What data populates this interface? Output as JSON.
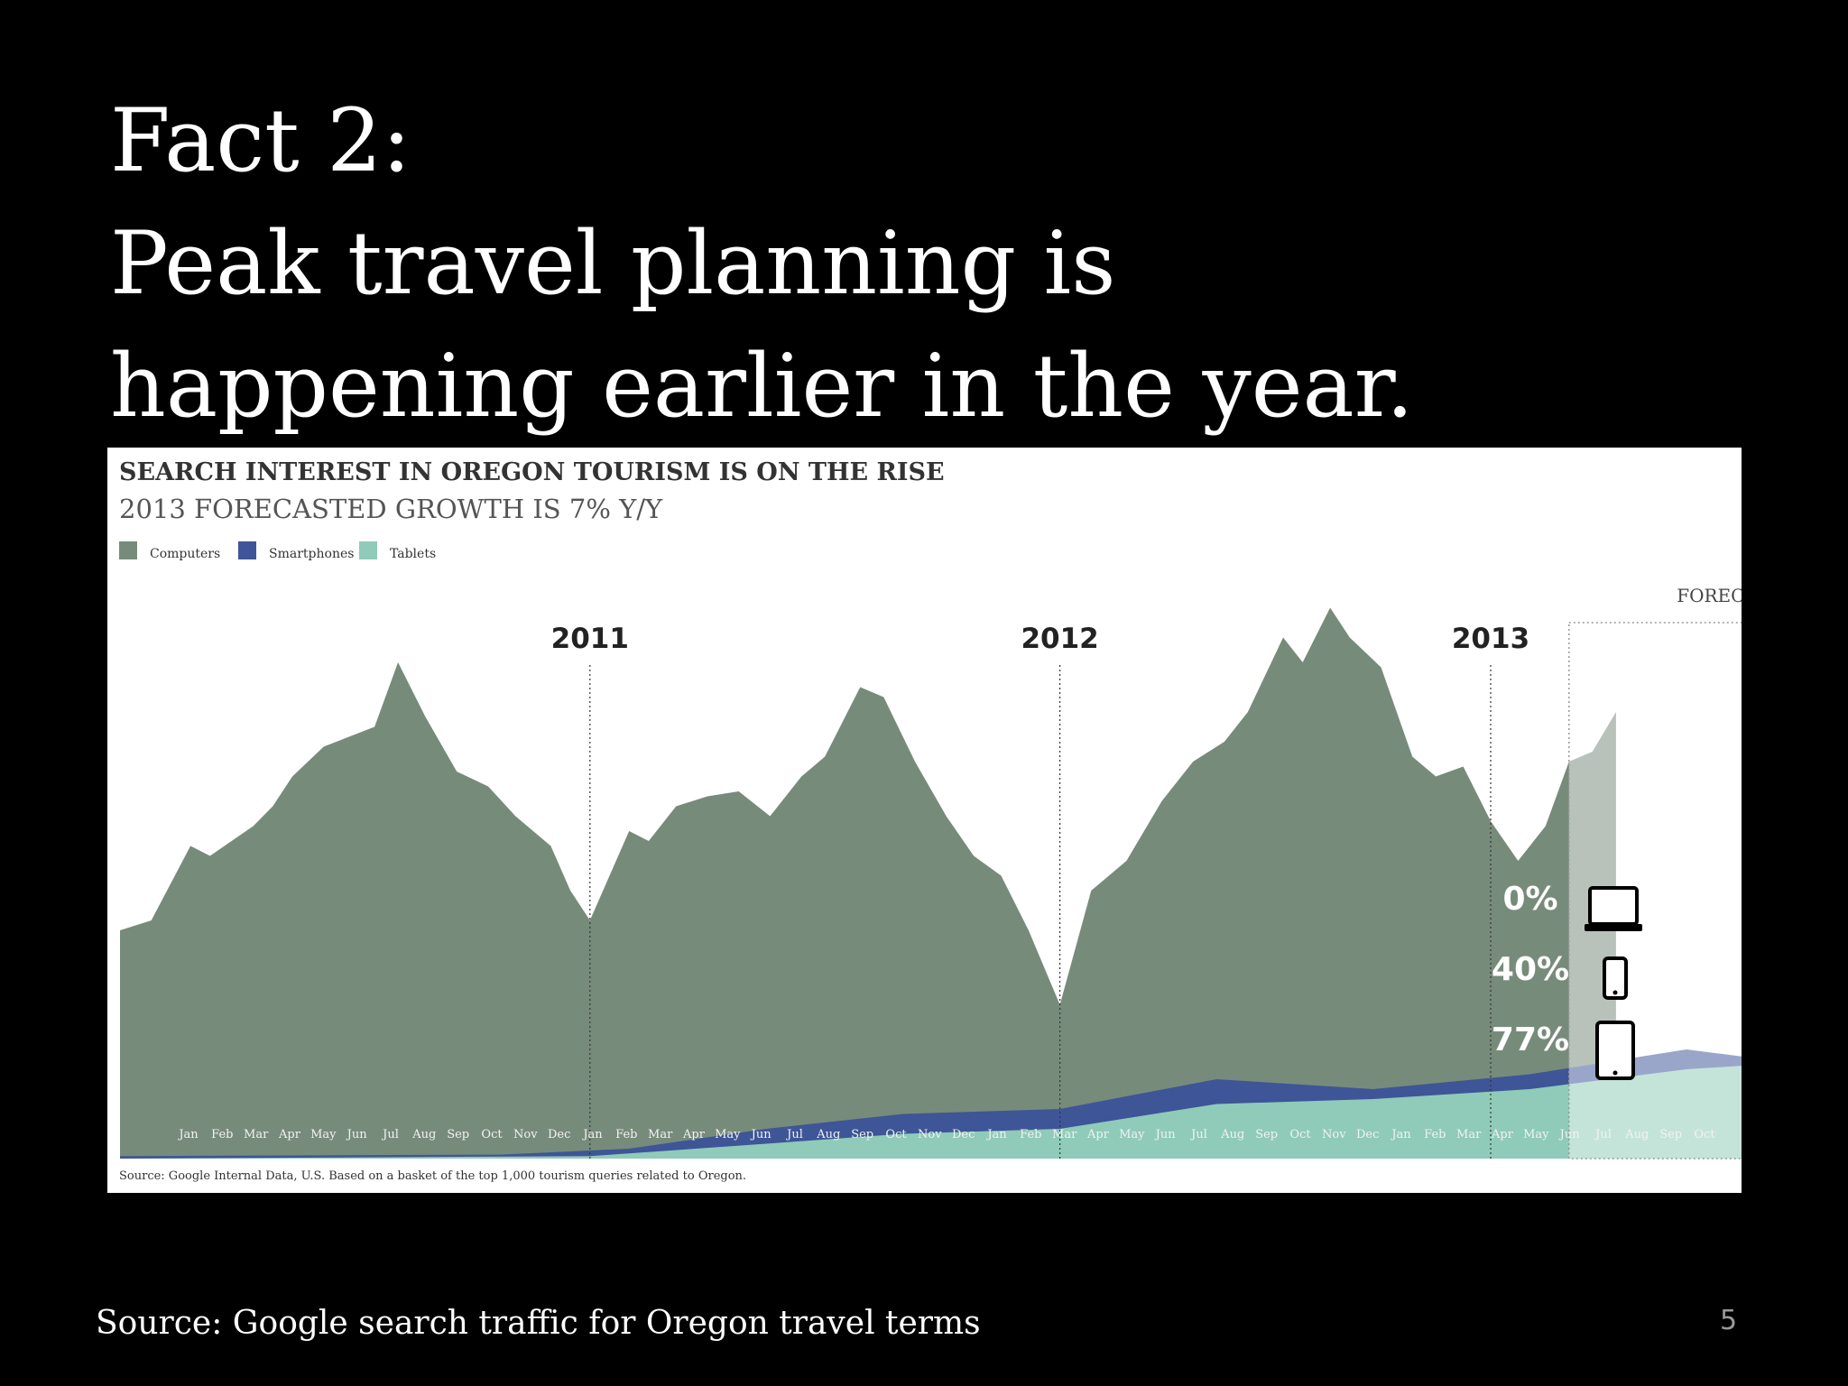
{
  "slide": {
    "title_lines": [
      "Fact 2:",
      "Peak travel planning is",
      "happening earlier in the year."
    ],
    "source": "Source: Google search traffic for Oregon travel terms",
    "page_number": "5"
  },
  "colors": {
    "background": "#000000",
    "computers": "#778b7b",
    "smartphones": "#3e5597",
    "tablets": "#8fcbb8",
    "forecast_overlay": "#ffffff"
  },
  "chart_data": {
    "type": "area",
    "title": "SEARCH INTEREST IN OREGON TOURISM IS ON THE RISE",
    "subtitle": "2013 FORECASTED GROWTH IS 7% Y/Y",
    "legend_position": "top-left",
    "grid": false,
    "y_range": [
      0,
      100
    ],
    "x_range": [
      0,
      40
    ],
    "year_markers": [
      {
        "label": "2011",
        "x": 12
      },
      {
        "label": "2012",
        "x": 24
      },
      {
        "label": "2013",
        "x": 35
      }
    ],
    "forecast": {
      "label": "FORECAST",
      "start_x": 37,
      "end_x": 44.5
    },
    "month_tick_labels": [
      "Jan",
      "Feb",
      "Mar",
      "Apr",
      "May",
      "Jun",
      "Jul",
      "Aug",
      "Sep",
      "Oct",
      "Nov",
      "Dec",
      "Jan",
      "Feb",
      "Mar",
      "Apr",
      "May",
      "Jun",
      "Jul",
      "Aug",
      "Sep",
      "Oct",
      "Nov",
      "Dec",
      "Jan",
      "Feb",
      "Mar",
      "Apr",
      "May",
      "Jun",
      "Jul",
      "Aug",
      "Sep",
      "Oct",
      "Nov",
      "Dec",
      "Jan",
      "Feb",
      "Mar",
      "Apr",
      "May",
      "Jun",
      "Jul",
      "Aug",
      "Sep",
      "Oct"
    ],
    "series": [
      {
        "name": "Computers",
        "color": "#778b7b",
        "points": [
          [
            0,
            46
          ],
          [
            0.8,
            48
          ],
          [
            1.8,
            63
          ],
          [
            2.3,
            61
          ],
          [
            3.4,
            67
          ],
          [
            3.9,
            71
          ],
          [
            4.4,
            77
          ],
          [
            5.2,
            83
          ],
          [
            6.5,
            87
          ],
          [
            7.1,
            100
          ],
          [
            7.8,
            89
          ],
          [
            8.6,
            78
          ],
          [
            9.4,
            75
          ],
          [
            10.1,
            69
          ],
          [
            11.0,
            63
          ],
          [
            11.5,
            54
          ],
          [
            12.0,
            48
          ],
          [
            13.0,
            66
          ],
          [
            13.5,
            64
          ],
          [
            14.2,
            71
          ],
          [
            15.0,
            73
          ],
          [
            15.8,
            74
          ],
          [
            16.6,
            69
          ],
          [
            17.4,
            77
          ],
          [
            18.0,
            81
          ],
          [
            18.9,
            95
          ],
          [
            19.5,
            93
          ],
          [
            20.3,
            80
          ],
          [
            21.1,
            69
          ],
          [
            21.8,
            61
          ],
          [
            22.5,
            57
          ],
          [
            23.2,
            46
          ],
          [
            24.0,
            31
          ],
          [
            24.8,
            54
          ],
          [
            25.7,
            60
          ],
          [
            26.6,
            72
          ],
          [
            27.4,
            80
          ],
          [
            28.2,
            84
          ],
          [
            28.8,
            90
          ],
          [
            29.7,
            105
          ],
          [
            30.2,
            100
          ],
          [
            30.9,
            111
          ],
          [
            31.4,
            105
          ],
          [
            32.2,
            99
          ],
          [
            33.0,
            81
          ],
          [
            33.6,
            77
          ],
          [
            34.3,
            79
          ],
          [
            35.0,
            68
          ],
          [
            35.7,
            60
          ],
          [
            36.4,
            67
          ],
          [
            37.0,
            80
          ],
          [
            37.6,
            82
          ],
          [
            38.2,
            90
          ]
        ]
      },
      {
        "name": "Smartphones",
        "color": "#3e5597",
        "points": [
          [
            0,
            0.5
          ],
          [
            9.7,
            0.8
          ],
          [
            13.0,
            2
          ],
          [
            16.5,
            6
          ],
          [
            20.0,
            9
          ],
          [
            24.0,
            10
          ],
          [
            28.0,
            16
          ],
          [
            32.0,
            14
          ],
          [
            36.0,
            17
          ],
          [
            40.0,
            22
          ],
          [
            44.0,
            18
          ]
        ]
      },
      {
        "name": "Tablets",
        "color": "#8fcbb8",
        "points": [
          [
            0,
            0
          ],
          [
            12.0,
            0.5
          ],
          [
            16.5,
            3
          ],
          [
            20.0,
            5
          ],
          [
            24.0,
            6
          ],
          [
            28.0,
            11
          ],
          [
            32.0,
            12
          ],
          [
            36.0,
            14
          ],
          [
            40.0,
            18
          ],
          [
            44.0,
            20
          ]
        ]
      }
    ],
    "forecast_growth": [
      {
        "device": "laptop",
        "value": "0%"
      },
      {
        "device": "smartphone",
        "value": "40%"
      },
      {
        "device": "tablet",
        "value": "77%"
      }
    ],
    "footnote": "Source: Google Internal Data, U.S. Based on a basket of the top 1,000 tourism queries related to Oregon."
  }
}
